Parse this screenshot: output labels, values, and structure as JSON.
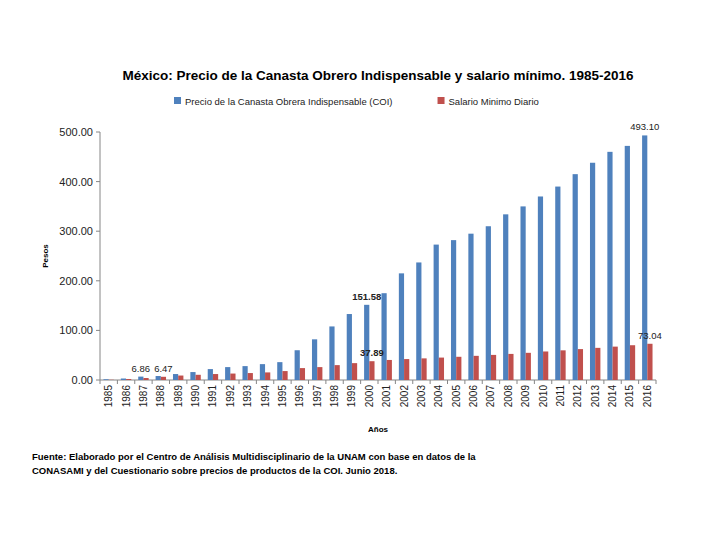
{
  "chart_data": {
    "type": "bar",
    "title": "México: Precio de la Canasta Obrero Indispensable y salario mínimo. 1985-2016",
    "x_label": "Años",
    "y_label": "Pesos",
    "annotations": [
      "Fuente: Elaborado por el Centro de Análisis Multidisciplinario de la UNAM con base en datos de la",
      "CONASAMI y del Cuestionario sobre precios de productos de la COI.  Junio 2018."
    ],
    "categories": [
      "1985",
      "1986",
      "1987",
      "1988",
      "1989",
      "1990",
      "1991",
      "1992",
      "1993",
      "1994",
      "1995",
      "1996",
      "1997",
      "1998",
      "1999",
      "2000",
      "2001",
      "2002",
      "2003",
      "2004",
      "2005",
      "2006",
      "2007",
      "2008",
      "2009",
      "2010",
      "2011",
      "2012",
      "2013",
      "2014",
      "2015",
      "2016"
    ],
    "series": [
      {
        "name": "Precio de la Canasta Obrera Indispensable (COI)",
        "color": "#4f81bd",
        "values": [
          1.5,
          3,
          6.86,
          8,
          12,
          16,
          22,
          26,
          28,
          32,
          36,
          60,
          82,
          108,
          133,
          151.58,
          175,
          215,
          237,
          273,
          282,
          295,
          310,
          334,
          350,
          370,
          390,
          415,
          438,
          460,
          472,
          493.1
        ],
        "value_labels": [
          null,
          null,
          "6.86",
          null,
          null,
          null,
          null,
          null,
          null,
          null,
          null,
          null,
          null,
          null,
          null,
          "151.58",
          null,
          null,
          null,
          null,
          null,
          null,
          null,
          null,
          null,
          null,
          null,
          null,
          null,
          null,
          null,
          "493.10"
        ]
      },
      {
        "name": "Salario Minimo Diario",
        "color": "#c0504d",
        "values": [
          0.5,
          2,
          4,
          6.47,
          9,
          10.5,
          12,
          13,
          14,
          15.3,
          18,
          24,
          26,
          30,
          34,
          37.89,
          40.4,
          42.2,
          43.6,
          45.2,
          46.8,
          48.7,
          50.6,
          52.6,
          54.8,
          57.5,
          59.8,
          62.3,
          64.8,
          67.3,
          70.1,
          73.04
        ],
        "value_labels": [
          null,
          null,
          null,
          "6.47",
          null,
          null,
          null,
          null,
          null,
          null,
          null,
          null,
          null,
          null,
          null,
          "37.89",
          null,
          null,
          null,
          null,
          null,
          null,
          null,
          null,
          null,
          null,
          null,
          null,
          null,
          null,
          null,
          "73.04"
        ]
      }
    ],
    "ylim": [
      0,
      500
    ],
    "yticks": [
      {
        "value": 0,
        "label": "0.00"
      },
      {
        "value": 100,
        "label": "100.00"
      },
      {
        "value": 200,
        "label": "200.00"
      },
      {
        "value": 300,
        "label": "300.00"
      },
      {
        "value": 400,
        "label": "400.00"
      },
      {
        "value": 500,
        "label": "500.00"
      }
    ],
    "grid": false,
    "legend": "top",
    "data_labels": true
  }
}
